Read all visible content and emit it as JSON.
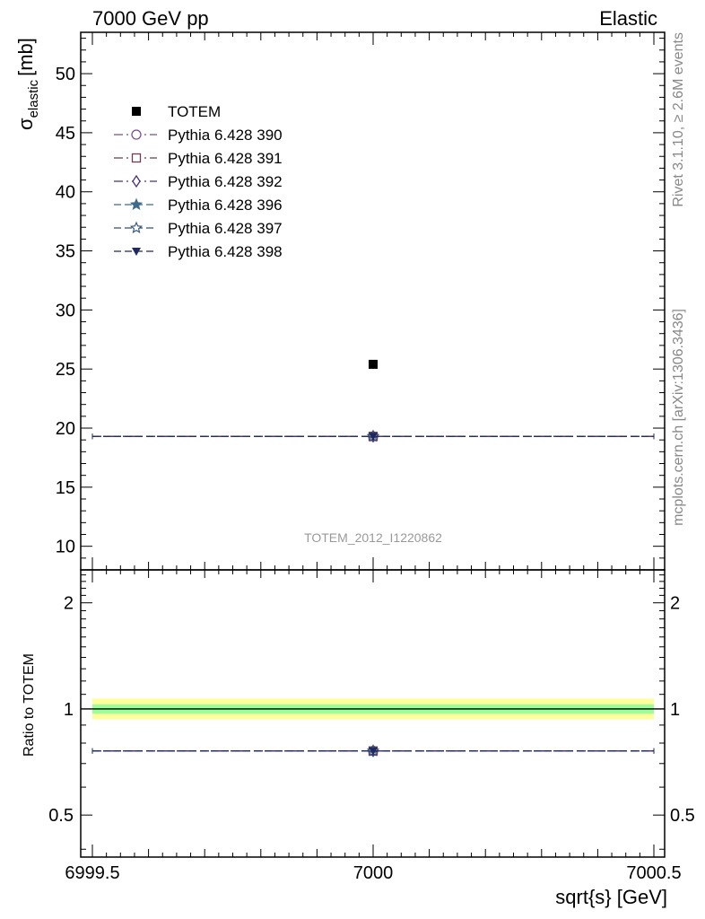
{
  "header": {
    "left": "7000 GeV pp",
    "right": "Elastic"
  },
  "side_labels": {
    "rivet": "Rivet 3.1.10, ≥ 2.6M events",
    "mcplots": "mcplots.cern.ch [arXiv:1306.3436]"
  },
  "watermark": "TOTEM_2012_I1220862",
  "chart_data": [
    {
      "type": "scatter",
      "panel": "main",
      "ylabel_symbol": "σ",
      "ylabel_sub": "elastic",
      "ylabel_unit": "[mb]",
      "xlim": [
        6999.5,
        7000.5
      ],
      "ylim": [
        8,
        53.5
      ],
      "y_ticks": [
        10,
        15,
        20,
        25,
        30,
        35,
        40,
        45,
        50
      ],
      "y_tick_labels": [
        "10",
        "15",
        "20",
        "25",
        "30",
        "35",
        "40",
        "45",
        "50"
      ],
      "legend_position": "top-left",
      "series": [
        {
          "name": "TOTEM",
          "kind": "data",
          "color": "#000000",
          "marker": "filled-square",
          "x": [
            7000
          ],
          "y": [
            25.4
          ]
        },
        {
          "name": "Pythia 6.428 390",
          "kind": "mc",
          "color": "#7a4f8c",
          "marker": "open-circle",
          "dash": "dashdot",
          "x": [
            7000
          ],
          "y": [
            19.3
          ]
        },
        {
          "name": "Pythia 6.428 391",
          "kind": "mc",
          "color": "#6e3a4f",
          "marker": "open-square",
          "dash": "dashdot",
          "x": [
            7000
          ],
          "y": [
            19.3
          ]
        },
        {
          "name": "Pythia 6.428 392",
          "kind": "mc",
          "color": "#4a2f7e",
          "marker": "open-diamond",
          "dash": "dashdot",
          "x": [
            7000
          ],
          "y": [
            19.3
          ]
        },
        {
          "name": "Pythia 6.428 396",
          "kind": "mc",
          "color": "#3f6a8a",
          "marker": "filled-star",
          "dash": "dashed",
          "x": [
            7000
          ],
          "y": [
            19.3
          ]
        },
        {
          "name": "Pythia 6.428 397",
          "kind": "mc",
          "color": "#2e5078",
          "marker": "open-star",
          "dash": "dashed",
          "x": [
            7000
          ],
          "y": [
            19.3
          ]
        },
        {
          "name": "Pythia 6.428 398",
          "kind": "mc",
          "color": "#1e2a5e",
          "marker": "filled-triangle-down",
          "dash": "dashed",
          "x": [
            7000
          ],
          "y": [
            19.3
          ]
        }
      ]
    },
    {
      "type": "scatter",
      "panel": "ratio",
      "ylabel": "Ratio to TOTEM",
      "xlabel": "sqrt{s} [GeV]",
      "xlim": [
        6999.5,
        7000.5
      ],
      "x_ticks": [
        6999.5,
        7000,
        7000.5
      ],
      "x_tick_labels": [
        "6999.5",
        "7000",
        "7000.5"
      ],
      "ylim": [
        0.38,
        2.48
      ],
      "y_scale": "log",
      "y_ticks": [
        0.5,
        1,
        2
      ],
      "y_tick_labels": [
        "0.5",
        "1",
        "2"
      ],
      "reference_line": 1,
      "bands": [
        {
          "color": "#ffff99",
          "lower": 0.935,
          "upper": 1.07
        },
        {
          "color": "#99ff99",
          "lower": 0.97,
          "upper": 1.03
        }
      ],
      "series": [
        {
          "name": "Pythia 6.428 390",
          "color": "#7a4f8c",
          "x": [
            7000
          ],
          "y": [
            0.76
          ]
        },
        {
          "name": "Pythia 6.428 391",
          "color": "#6e3a4f",
          "x": [
            7000
          ],
          "y": [
            0.76
          ]
        },
        {
          "name": "Pythia 6.428 392",
          "color": "#4a2f7e",
          "x": [
            7000
          ],
          "y": [
            0.76
          ]
        },
        {
          "name": "Pythia 6.428 396",
          "color": "#3f6a8a",
          "x": [
            7000
          ],
          "y": [
            0.76
          ]
        },
        {
          "name": "Pythia 6.428 397",
          "color": "#2e5078",
          "x": [
            7000
          ],
          "y": [
            0.76
          ]
        },
        {
          "name": "Pythia 6.428 398",
          "color": "#1e2a5e",
          "x": [
            7000
          ],
          "y": [
            0.76
          ]
        }
      ]
    }
  ]
}
